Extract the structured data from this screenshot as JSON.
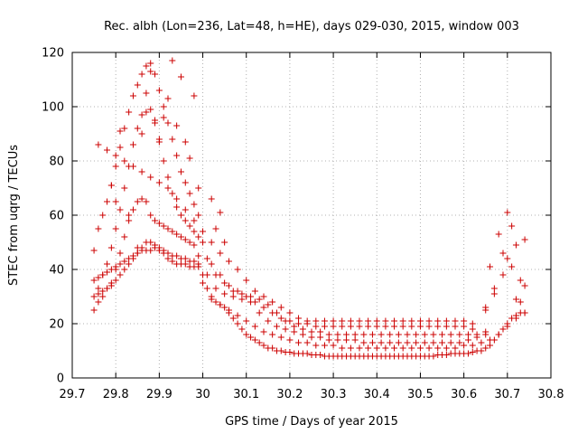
{
  "chart_data": {
    "type": "scatter",
    "title": "Rec. albh (Lon=236, Lat=48, h=HE), days 029-030, 2015, window 003",
    "xlabel": "GPS time / Days of year 2015",
    "ylabel": "STEC from uqrg / TECUs",
    "xlim": [
      29.7,
      30.8
    ],
    "ylim": [
      0,
      120
    ],
    "x_ticks": [
      "29.7",
      "29.8",
      "29.9",
      "30",
      "30.1",
      "30.2",
      "30.3",
      "30.4",
      "30.5",
      "30.6",
      "30.7",
      "30.8"
    ],
    "y_ticks": [
      "0",
      "20",
      "40",
      "60",
      "80",
      "100",
      "120"
    ],
    "grid": true,
    "marker": "+",
    "color": "#cc0000",
    "series": [
      {
        "x": [
          29.75,
          29.76,
          29.77,
          29.78,
          29.79,
          29.8,
          29.81,
          29.82,
          29.83,
          29.84,
          29.85,
          29.86,
          29.87,
          29.88,
          29.89,
          29.9,
          29.91,
          29.92,
          29.93,
          29.94,
          29.95,
          29.96,
          29.97,
          29.98,
          29.99,
          30.0,
          30.01,
          30.02,
          30.03,
          30.04,
          30.05,
          30.06,
          30.07,
          30.08,
          30.09,
          30.1,
          30.11,
          30.12,
          30.13,
          30.14,
          30.15,
          30.16,
          30.17,
          30.18,
          30.19,
          30.2,
          30.21,
          30.22,
          30.23,
          30.24,
          30.25,
          30.26,
          30.27,
          30.28,
          30.29,
          30.3,
          30.31,
          30.32,
          30.33,
          30.34,
          30.35,
          30.36,
          30.37,
          30.38,
          30.39,
          30.4,
          30.41,
          30.42,
          30.43,
          30.44,
          30.45,
          30.46,
          30.47,
          30.48,
          30.49,
          30.5,
          30.51,
          30.52,
          30.53,
          30.54,
          30.55,
          30.56,
          30.57,
          30.58,
          30.59,
          30.6,
          30.61,
          30.62,
          30.63,
          30.64,
          30.65,
          30.66,
          30.67,
          30.68,
          30.69,
          30.7,
          30.71,
          30.72,
          30.73,
          30.74
        ],
        "y": [
          36,
          37,
          38,
          39,
          40,
          41,
          42,
          43,
          44,
          45,
          46,
          47,
          47,
          47,
          48,
          47,
          46,
          44,
          43,
          42,
          42,
          42,
          41,
          41,
          41,
          38,
          33,
          29,
          28,
          27,
          26,
          24,
          22,
          20,
          18,
          16,
          15,
          14,
          13,
          12,
          11,
          11,
          10,
          10,
          9.5,
          9.5,
          9,
          9,
          9,
          9,
          8.5,
          8.5,
          8.5,
          8,
          8,
          8,
          8,
          8,
          8,
          8,
          8,
          8,
          8,
          8,
          8,
          8,
          8,
          8,
          8,
          8,
          8,
          8,
          8,
          8,
          8,
          8,
          8,
          8,
          8,
          8.5,
          8.5,
          8.5,
          9,
          9,
          9,
          9,
          9,
          9.5,
          10,
          10,
          11,
          12,
          14,
          16,
          18,
          20,
          22,
          23,
          24,
          24
        ]
      },
      {
        "x": [
          29.75,
          29.76,
          29.77,
          29.78,
          29.79,
          29.8,
          29.81,
          29.82,
          29.83,
          29.84,
          29.85,
          29.86,
          29.87,
          29.88,
          29.89,
          29.9,
          29.91,
          29.92,
          29.93,
          29.94,
          29.95,
          29.96,
          29.97,
          29.98,
          29.99,
          30.0,
          30.02,
          30.04,
          30.06,
          30.08,
          30.1,
          30.12,
          30.14,
          30.16,
          30.18,
          30.2,
          30.22,
          30.24,
          30.26,
          30.28,
          30.3,
          30.32,
          30.34,
          30.36,
          30.38,
          30.4,
          30.42,
          30.44,
          30.46,
          30.48,
          30.5,
          30.52,
          30.54,
          30.56,
          30.58,
          30.6,
          30.62,
          30.64,
          30.66,
          30.68,
          30.7,
          30.72,
          30.74
        ],
        "y": [
          30,
          31,
          32,
          33,
          34,
          36,
          38,
          40,
          42,
          44,
          46,
          48,
          50,
          50,
          49,
          48,
          47,
          46,
          45,
          45,
          44,
          44,
          43,
          43,
          42,
          35,
          30,
          27,
          25,
          23,
          21,
          19,
          17,
          16,
          15,
          14,
          13,
          13,
          12,
          12,
          12,
          11,
          11,
          11,
          11,
          11,
          11,
          11,
          11,
          11,
          11,
          11,
          11,
          11,
          11,
          12,
          12,
          13,
          14,
          16,
          19,
          22,
          24
        ]
      },
      {
        "x": [
          29.75,
          29.76,
          29.77,
          29.78,
          29.79,
          29.8,
          29.81,
          29.82,
          29.83,
          29.84,
          29.85,
          29.86,
          29.87,
          29.88,
          29.89,
          29.9,
          29.91,
          29.92,
          29.93,
          29.94,
          29.95,
          29.96,
          29.97,
          29.98,
          29.99,
          30.01,
          30.03,
          30.05,
          30.07,
          30.09,
          30.11,
          30.13,
          30.15,
          30.17,
          30.19,
          30.21,
          30.23,
          30.25,
          30.27,
          30.29,
          30.31,
          30.33,
          30.35,
          30.37,
          30.39,
          30.41,
          30.43,
          30.45,
          30.47,
          30.49,
          30.51,
          30.53,
          30.55,
          30.57,
          30.59,
          30.61,
          30.63,
          30.65
        ],
        "y": [
          25,
          28,
          30,
          33,
          35,
          40,
          46,
          52,
          58,
          62,
          65,
          66,
          65,
          60,
          58,
          57,
          56,
          55,
          54,
          53,
          52,
          51,
          50,
          49,
          45,
          38,
          33,
          31,
          30,
          29,
          28,
          24,
          21,
          19,
          18,
          17,
          16,
          15,
          15,
          14,
          14,
          14,
          14,
          13,
          13,
          13,
          13,
          13,
          13,
          13,
          13,
          13,
          13,
          13,
          13,
          14,
          15,
          16
        ]
      },
      {
        "x": [
          29.76,
          29.77,
          29.78,
          29.79,
          29.8,
          29.81,
          29.82,
          29.83,
          29.84,
          29.85,
          29.86,
          29.87,
          29.88,
          29.89,
          29.9,
          29.91,
          29.92,
          29.93,
          29.94,
          29.95,
          29.96,
          29.97,
          29.98,
          29.99,
          30.01,
          30.03,
          30.05,
          30.07,
          30.09,
          30.11,
          30.13,
          30.15,
          30.17,
          30.19,
          30.21,
          30.23,
          30.25,
          30.27,
          30.29,
          30.31,
          30.33,
          30.35,
          30.37,
          30.39,
          30.41,
          30.43,
          30.45,
          30.47,
          30.49,
          30.51,
          30.53,
          30.55,
          30.57,
          30.59,
          30.61,
          30.63,
          30.65
        ],
        "y": [
          33,
          38,
          42,
          48,
          55,
          62,
          70,
          78,
          86,
          92,
          97,
          98,
          99,
          94,
          88,
          80,
          74,
          68,
          63,
          60,
          58,
          56,
          54,
          52,
          44,
          38,
          35,
          32,
          31,
          30,
          29,
          27,
          24,
          21,
          19,
          18,
          17,
          17,
          16,
          16,
          16,
          16,
          16,
          16,
          16,
          16,
          16,
          16,
          16,
          16,
          16,
          16,
          16,
          16,
          16,
          16,
          17
        ]
      },
      {
        "x": [
          29.75,
          29.76,
          29.77,
          29.78,
          29.79,
          29.8,
          29.81,
          29.82,
          29.83,
          29.84,
          29.85,
          29.86,
          29.87,
          29.88,
          29.89,
          29.9,
          29.91,
          29.92,
          29.93,
          29.94,
          29.95,
          29.96,
          29.97,
          29.98,
          29.99,
          30.0,
          30.02,
          30.04,
          30.06,
          30.08,
          30.1,
          30.12,
          30.14,
          30.16,
          30.18,
          30.2,
          30.22,
          30.24,
          30.26,
          30.28,
          30.3,
          30.32,
          30.34,
          30.36,
          30.38,
          30.4,
          30.42,
          30.44,
          30.46,
          30.48,
          30.5,
          30.52,
          30.54,
          30.56,
          30.58,
          30.6,
          30.62
        ],
        "y": [
          47,
          55,
          60,
          65,
          71,
          78,
          85,
          92,
          98,
          104,
          108,
          112,
          115,
          116,
          112,
          106,
          100,
          94,
          88,
          82,
          76,
          72,
          68,
          64,
          60,
          50,
          42,
          38,
          34,
          32,
          30,
          28,
          26,
          24,
          22,
          21,
          20,
          20,
          19,
          19,
          19,
          19,
          19,
          19,
          19,
          19,
          19,
          19,
          19,
          19,
          19,
          19,
          19,
          19,
          19,
          19,
          18
        ]
      },
      {
        "x": [
          29.76,
          29.78,
          29.8,
          29.82,
          29.84,
          29.86,
          29.88,
          29.9,
          29.92,
          29.94,
          29.96,
          29.98,
          30.0,
          30.02,
          30.04,
          30.06,
          30.08,
          30.1,
          30.12,
          30.14,
          30.16,
          30.18,
          30.2,
          30.22,
          30.24,
          30.26,
          30.28,
          30.3,
          30.32,
          30.34,
          30.36,
          30.38,
          30.4,
          30.42,
          30.44,
          30.46,
          30.48,
          30.5,
          30.52,
          30.54,
          30.56,
          30.58,
          30.6,
          30.62
        ],
        "y": [
          86,
          84,
          82,
          80,
          78,
          76,
          74,
          72,
          70,
          66,
          62,
          58,
          54,
          50,
          46,
          43,
          40,
          36,
          32,
          30,
          28,
          26,
          24,
          22,
          21,
          21,
          21,
          21,
          21,
          21,
          21,
          21,
          21,
          21,
          21,
          21,
          21,
          21,
          21,
          21,
          21,
          21,
          21,
          20
        ]
      },
      {
        "x": [
          29.79,
          29.8,
          29.81,
          29.83,
          29.85,
          29.86,
          29.87,
          29.88,
          29.89,
          29.9,
          29.91,
          29.92,
          29.93,
          29.94,
          29.95,
          29.96,
          29.97,
          29.98,
          29.99,
          30.02,
          30.03,
          30.04,
          30.05
        ],
        "y": [
          71,
          65,
          91,
          60,
          48,
          90,
          105,
          113,
          95,
          87,
          96,
          103,
          117,
          93,
          111,
          87,
          81,
          104,
          70,
          66,
          55,
          61,
          50
        ]
      },
      {
        "x": [
          30.65,
          30.66,
          30.67,
          30.68,
          30.69,
          30.7,
          30.71,
          30.72,
          30.73,
          30.74,
          30.65,
          30.67,
          30.69,
          30.7,
          30.71,
          30.72,
          30.73,
          30.74
        ],
        "y": [
          25,
          41,
          33,
          53,
          46,
          61,
          56,
          49,
          36,
          51,
          26,
          31,
          38,
          44,
          41,
          29,
          28,
          34
        ]
      }
    ]
  }
}
